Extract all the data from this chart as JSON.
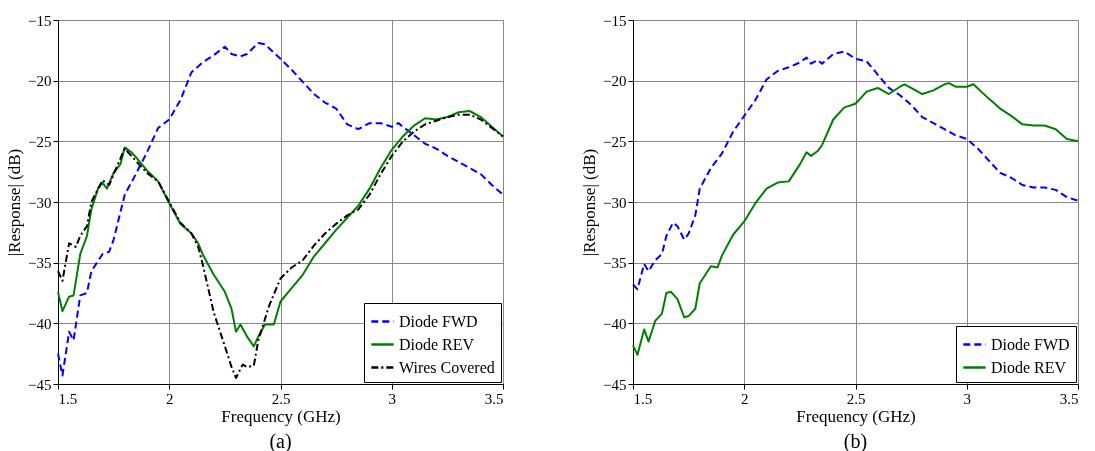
{
  "chart_data": [
    {
      "type": "line",
      "title": "(a)",
      "xlabel": "Frequency (GHz)",
      "ylabel": "|Response| (dB)",
      "xlim": [
        1.5,
        3.5
      ],
      "ylim": [
        -45,
        -15
      ],
      "xticks": [
        1.5,
        2,
        2.5,
        3,
        3.5
      ],
      "yticks": [
        -45,
        -40,
        -35,
        -30,
        -25,
        -20,
        -15
      ],
      "grid": true,
      "legend": "bottom right",
      "series": [
        {
          "name": "Diode FWD",
          "color": "#0000ff",
          "line_style": "dashed",
          "x": [
            1.5,
            1.52,
            1.55,
            1.57,
            1.6,
            1.63,
            1.65,
            1.7,
            1.73,
            1.75,
            1.8,
            1.85,
            1.9,
            1.95,
            2.0,
            2.05,
            2.1,
            2.15,
            2.2,
            2.25,
            2.28,
            2.32,
            2.35,
            2.4,
            2.43,
            2.5,
            2.55,
            2.6,
            2.65,
            2.7,
            2.75,
            2.8,
            2.85,
            2.9,
            2.95,
            3.0,
            3.03,
            3.05,
            3.1,
            3.15,
            3.2,
            3.25,
            3.3,
            3.35,
            3.4,
            3.45,
            3.5
          ],
          "values": [
            -42.5,
            -44.3,
            -40.7,
            -41.4,
            -37.7,
            -37.5,
            -35.7,
            -34.3,
            -34.1,
            -33.1,
            -29.4,
            -27.7,
            -25.9,
            -23.9,
            -23.2,
            -21.6,
            -19.3,
            -18.5,
            -17.9,
            -17.2,
            -17.8,
            -18.0,
            -17.8,
            -16.9,
            -17.0,
            -18.2,
            -19.1,
            -20.1,
            -21.1,
            -21.8,
            -22.3,
            -23.6,
            -24.0,
            -23.5,
            -23.5,
            -23.8,
            -23.5,
            -23.8,
            -24.5,
            -25.2,
            -25.6,
            -26.2,
            -26.7,
            -27.2,
            -27.7,
            -28.6,
            -29.4
          ]
        },
        {
          "name": "Diode REV",
          "color": "#008000",
          "line_style": "solid",
          "x": [
            1.5,
            1.52,
            1.55,
            1.57,
            1.6,
            1.63,
            1.65,
            1.68,
            1.7,
            1.72,
            1.75,
            1.78,
            1.8,
            1.83,
            1.85,
            1.9,
            1.95,
            2.0,
            2.05,
            2.1,
            2.13,
            2.15,
            2.2,
            2.25,
            2.28,
            2.3,
            2.32,
            2.35,
            2.38,
            2.4,
            2.43,
            2.47,
            2.5,
            2.55,
            2.6,
            2.65,
            2.7,
            2.75,
            2.8,
            2.85,
            2.9,
            2.95,
            3.0,
            3.05,
            3.1,
            3.15,
            3.2,
            3.25,
            3.3,
            3.35,
            3.4,
            3.45,
            3.5
          ],
          "values": [
            -37.4,
            -39.0,
            -37.8,
            -37.7,
            -34.3,
            -32.8,
            -30.6,
            -28.9,
            -28.4,
            -28.9,
            -27.6,
            -26.9,
            -25.5,
            -25.9,
            -26.3,
            -27.4,
            -28.3,
            -30.1,
            -31.8,
            -32.6,
            -33.4,
            -34.3,
            -36.0,
            -37.4,
            -38.8,
            -40.7,
            -40.1,
            -41.1,
            -41.9,
            -41.1,
            -40.1,
            -40.1,
            -38.2,
            -37.1,
            -36.0,
            -34.5,
            -33.4,
            -32.3,
            -31.3,
            -30.3,
            -28.9,
            -27.2,
            -25.7,
            -24.6,
            -23.7,
            -23.1,
            -23.2,
            -23.0,
            -22.6,
            -22.5,
            -23.0,
            -23.8,
            -24.6
          ]
        },
        {
          "name": "Wires Covered",
          "color": "#000000",
          "line_style": "dashdot",
          "x": [
            1.5,
            1.52,
            1.55,
            1.58,
            1.6,
            1.63,
            1.65,
            1.7,
            1.73,
            1.75,
            1.8,
            1.83,
            1.85,
            1.9,
            1.95,
            2.0,
            2.05,
            2.1,
            2.13,
            2.15,
            2.2,
            2.25,
            2.28,
            2.3,
            2.33,
            2.35,
            2.38,
            2.4,
            2.45,
            2.5,
            2.55,
            2.6,
            2.65,
            2.7,
            2.75,
            2.8,
            2.85,
            2.9,
            2.95,
            3.0,
            3.05,
            3.1,
            3.15,
            3.2,
            3.25,
            3.3,
            3.35,
            3.4,
            3.45,
            3.5
          ],
          "values": [
            -35.7,
            -36.5,
            -33.4,
            -33.7,
            -32.8,
            -32.0,
            -30.0,
            -28.2,
            -28.6,
            -27.7,
            -25.6,
            -26.2,
            -26.6,
            -27.6,
            -28.3,
            -30.0,
            -31.7,
            -32.6,
            -33.7,
            -35.1,
            -39.1,
            -41.9,
            -43.6,
            -44.5,
            -43.4,
            -43.6,
            -43.5,
            -41.4,
            -38.5,
            -36.3,
            -35.4,
            -34.8,
            -33.6,
            -32.6,
            -31.8,
            -31.1,
            -30.6,
            -29.4,
            -27.7,
            -26.2,
            -25.0,
            -24.2,
            -23.6,
            -23.3,
            -23.0,
            -22.8,
            -22.8,
            -23.2,
            -23.9,
            -24.6
          ]
        }
      ]
    },
    {
      "type": "line",
      "title": "(b)",
      "xlabel": "Frequency (GHz)",
      "ylabel": "|Response| (dB)",
      "xlim": [
        1.5,
        3.5
      ],
      "ylim": [
        -45,
        -15
      ],
      "xticks": [
        1.5,
        2,
        2.5,
        3,
        3.5
      ],
      "yticks": [
        -45,
        -40,
        -35,
        -30,
        -25,
        -20,
        -15
      ],
      "grid": true,
      "legend": "bottom right",
      "series": [
        {
          "name": "Diode FWD",
          "color": "#0000ff",
          "line_style": "dashed",
          "x": [
            1.5,
            1.52,
            1.55,
            1.57,
            1.6,
            1.63,
            1.65,
            1.68,
            1.7,
            1.73,
            1.75,
            1.78,
            1.8,
            1.85,
            1.9,
            1.95,
            2.0,
            2.05,
            2.1,
            2.15,
            2.2,
            2.25,
            2.28,
            2.3,
            2.33,
            2.35,
            2.4,
            2.45,
            2.5,
            2.55,
            2.6,
            2.65,
            2.7,
            2.75,
            2.8,
            2.85,
            2.9,
            2.95,
            3.0,
            3.05,
            3.1,
            3.15,
            3.2,
            3.25,
            3.3,
            3.35,
            3.4,
            3.45,
            3.5
          ],
          "values": [
            -36.8,
            -37.2,
            -35.1,
            -35.7,
            -34.8,
            -34.3,
            -32.8,
            -31.7,
            -32.0,
            -33.1,
            -32.6,
            -31.1,
            -28.9,
            -27.2,
            -26.0,
            -24.2,
            -22.9,
            -21.6,
            -19.9,
            -19.2,
            -18.9,
            -18.5,
            -18.1,
            -18.6,
            -18.3,
            -18.6,
            -17.8,
            -17.6,
            -18.2,
            -18.4,
            -19.5,
            -20.6,
            -21.2,
            -22.0,
            -23.0,
            -23.5,
            -24.0,
            -24.5,
            -24.8,
            -25.6,
            -26.6,
            -27.6,
            -28.0,
            -28.6,
            -28.8,
            -28.8,
            -29.0,
            -29.6,
            -29.9
          ]
        },
        {
          "name": "Diode REV",
          "color": "#008000",
          "line_style": "solid",
          "x": [
            1.5,
            1.52,
            1.55,
            1.57,
            1.6,
            1.63,
            1.65,
            1.67,
            1.7,
            1.73,
            1.75,
            1.78,
            1.8,
            1.85,
            1.88,
            1.9,
            1.95,
            2.0,
            2.05,
            2.1,
            2.15,
            2.2,
            2.25,
            2.28,
            2.3,
            2.33,
            2.35,
            2.4,
            2.45,
            2.5,
            2.55,
            2.6,
            2.65,
            2.7,
            2.72,
            2.75,
            2.8,
            2.85,
            2.9,
            2.92,
            2.95,
            3.0,
            3.03,
            3.1,
            3.15,
            3.2,
            3.25,
            3.3,
            3.35,
            3.4,
            3.45,
            3.5
          ],
          "values": [
            -41.8,
            -42.6,
            -40.5,
            -41.5,
            -39.8,
            -39.2,
            -37.5,
            -37.4,
            -38.0,
            -39.5,
            -39.4,
            -38.8,
            -36.7,
            -35.3,
            -35.4,
            -34.4,
            -32.7,
            -31.6,
            -30.1,
            -28.9,
            -28.4,
            -28.3,
            -26.9,
            -25.9,
            -26.2,
            -25.8,
            -25.3,
            -23.2,
            -22.2,
            -21.9,
            -20.9,
            -20.6,
            -21.1,
            -20.5,
            -20.3,
            -20.6,
            -21.1,
            -20.8,
            -20.3,
            -20.2,
            -20.5,
            -20.5,
            -20.3,
            -21.5,
            -22.3,
            -22.9,
            -23.6,
            -23.7,
            -23.7,
            -24.0,
            -24.8,
            -25.0
          ]
        }
      ]
    }
  ]
}
